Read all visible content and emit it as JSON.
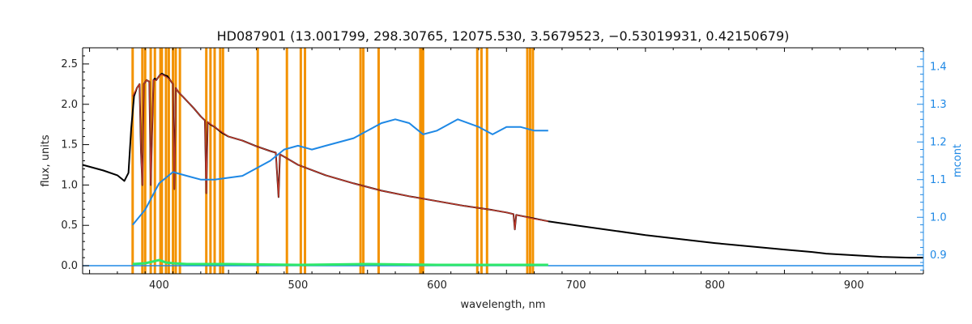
{
  "chart_data": {
    "type": "line",
    "title": "HD087901    (13.001799, 298.30765, 12075.530, 3.5679523, −0.53019931, 0.42150679)",
    "xlabel": "wavelength, nm",
    "ylabel": "flux, units",
    "y2label": "mcont",
    "xlim": [
      345,
      950
    ],
    "ylim": [
      -0.1,
      2.7
    ],
    "y2lim": [
      0.85,
      1.45
    ],
    "xticks": [
      "400",
      "500",
      "600",
      "700",
      "800",
      "900"
    ],
    "xtick_values": [
      400,
      500,
      600,
      700,
      800,
      900
    ],
    "yticks": [
      "0.0",
      "0.5",
      "1.0",
      "1.5",
      "2.0",
      "2.5"
    ],
    "ytick_values": [
      0.0,
      0.5,
      1.0,
      1.5,
      2.0,
      2.5
    ],
    "y2ticks": [
      "0.9",
      "1.0",
      "1.1",
      "1.2",
      "1.3",
      "1.4"
    ],
    "y2tick_values": [
      0.9,
      1.0,
      1.1,
      1.2,
      1.3,
      1.4
    ],
    "colors": {
      "observed": "#000000",
      "model": "#c0392b",
      "continuum": "#1e88e5",
      "residual": "#2ee86a",
      "zero_line": "#1e88e5",
      "masks": "#f39200",
      "axis2": "#1e88e5"
    },
    "mask_lines_nm": [
      381,
      388,
      390,
      394,
      397,
      401,
      402,
      405,
      407,
      410,
      412,
      415,
      434,
      437,
      440,
      444,
      446,
      471,
      492,
      502,
      505,
      545,
      547,
      558,
      588,
      589,
      590,
      629,
      632,
      636,
      665,
      667,
      669
    ],
    "series": [
      {
        "role": "observed",
        "x": [
          345,
          360,
          370,
          375,
          378,
          380,
          382,
          384,
          386,
          387,
          388,
          389,
          391,
          393,
          394,
          396,
          397,
          398,
          400,
          402,
          404,
          406,
          408,
          410,
          411,
          412,
          414,
          418,
          425,
          430,
          433,
          434,
          435,
          437,
          440,
          445,
          450,
          460,
          470,
          480,
          484,
          486,
          487,
          488,
          490,
          495,
          500,
          520,
          540,
          560,
          580,
          600,
          620,
          640,
          650,
          655,
          656,
          657,
          660,
          680,
          700,
          750,
          800,
          850,
          870,
          880,
          900,
          920,
          940,
          950
        ],
        "y": [
          1.25,
          1.18,
          1.12,
          1.05,
          1.15,
          1.7,
          2.1,
          2.2,
          2.25,
          1.4,
          1.0,
          2.25,
          2.3,
          2.28,
          1.0,
          2.3,
          2.32,
          2.3,
          2.35,
          2.38,
          2.36,
          2.35,
          2.3,
          2.25,
          0.95,
          2.2,
          2.15,
          2.08,
          1.95,
          1.85,
          1.8,
          0.9,
          1.78,
          1.75,
          1.72,
          1.65,
          1.6,
          1.55,
          1.48,
          1.42,
          1.4,
          0.85,
          1.38,
          1.37,
          1.35,
          1.3,
          1.25,
          1.12,
          1.02,
          0.93,
          0.86,
          0.8,
          0.74,
          0.69,
          0.66,
          0.64,
          0.45,
          0.63,
          0.62,
          0.55,
          0.5,
          0.38,
          0.28,
          0.2,
          0.17,
          0.15,
          0.13,
          0.11,
          0.1,
          0.1
        ]
      },
      {
        "role": "model",
        "x": [
          381,
          384,
          386,
          387,
          388,
          389,
          391,
          393,
          394,
          396,
          398,
          400,
          402,
          404,
          406,
          408,
          410,
          411,
          412,
          414,
          418,
          425,
          430,
          433,
          434,
          435,
          440,
          450,
          460,
          470,
          480,
          484,
          486,
          487,
          490,
          500,
          520,
          540,
          560,
          580,
          600,
          620,
          640,
          650,
          655,
          656,
          657,
          660,
          670,
          680
        ],
        "y": [
          2.1,
          2.2,
          2.25,
          1.4,
          1.0,
          2.25,
          2.3,
          2.28,
          1.0,
          2.3,
          2.3,
          2.35,
          2.37,
          2.35,
          2.33,
          2.3,
          2.25,
          0.95,
          2.2,
          2.15,
          2.08,
          1.95,
          1.85,
          1.8,
          0.9,
          1.78,
          1.72,
          1.6,
          1.55,
          1.48,
          1.42,
          1.4,
          0.85,
          1.38,
          1.35,
          1.25,
          1.12,
          1.02,
          0.93,
          0.86,
          0.8,
          0.74,
          0.69,
          0.66,
          0.64,
          0.45,
          0.63,
          0.62,
          0.58,
          0.55
        ]
      },
      {
        "role": "continuum",
        "axis": "right",
        "x": [
          381,
          390,
          400,
          410,
          420,
          430,
          440,
          460,
          480,
          490,
          500,
          510,
          520,
          540,
          560,
          570,
          580,
          590,
          600,
          615,
          630,
          640,
          650,
          660,
          670,
          680
        ],
        "y": [
          0.98,
          1.02,
          1.09,
          1.12,
          1.11,
          1.1,
          1.1,
          1.11,
          1.15,
          1.18,
          1.19,
          1.18,
          1.19,
          1.21,
          1.25,
          1.26,
          1.25,
          1.22,
          1.23,
          1.26,
          1.24,
          1.22,
          1.24,
          1.24,
          1.23,
          1.23
        ]
      },
      {
        "role": "residual",
        "x": [
          381,
          390,
          395,
          400,
          405,
          410,
          420,
          450,
          500,
          550,
          600,
          650,
          680
        ],
        "y": [
          0.02,
          0.03,
          0.05,
          0.07,
          0.04,
          0.03,
          0.02,
          0.02,
          0.01,
          0.02,
          0.01,
          0.01,
          0.01
        ]
      },
      {
        "role": "zero_line",
        "x": [
          345,
          950
        ],
        "y": [
          0.0,
          0.0
        ]
      }
    ]
  }
}
